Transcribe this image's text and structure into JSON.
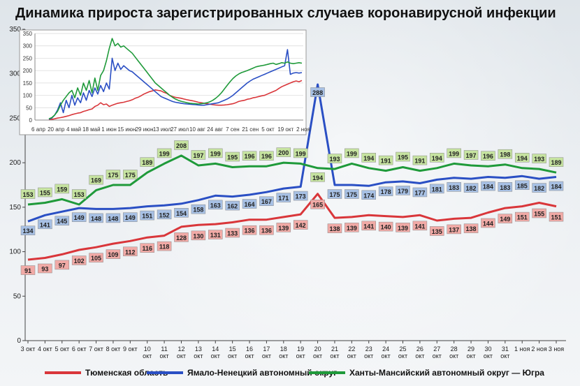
{
  "title": "Динамика прироста зарегистрированных случаев коронавирусной инфекции",
  "chart_data": [
    {
      "type": "line",
      "title": "",
      "ylim": [
        0,
        350
      ],
      "yticks": [
        0,
        50,
        100,
        150,
        200,
        250,
        300,
        350
      ],
      "grid": false,
      "legend_position": "bottom",
      "categories": [
        "3 окт",
        "4 окт",
        "5 окт",
        "6 окт",
        "7 окт",
        "8 окт",
        "9 окт",
        "10 окт",
        "11 окт",
        "12 окт",
        "13 окт",
        "14 окт",
        "15 окт",
        "16 окт",
        "17 окт",
        "18 окт",
        "19 окт",
        "20 окт",
        "21 окт",
        "22 окт",
        "23 окт",
        "24 окт",
        "25 окт",
        "26 окт",
        "27 окт",
        "28 окт",
        "29 окт",
        "30 окт",
        "31 окт",
        "1 ноя",
        "2 ноя",
        "3 ноя"
      ],
      "tick_labels": [
        {
          "l1": "3 окт",
          "l2": ""
        },
        {
          "l1": "4 окт",
          "l2": ""
        },
        {
          "l1": "5 окт",
          "l2": ""
        },
        {
          "l1": "6 окт",
          "l2": ""
        },
        {
          "l1": "7 окт",
          "l2": ""
        },
        {
          "l1": "8 окт",
          "l2": ""
        },
        {
          "l1": "9 окт",
          "l2": ""
        },
        {
          "l1": "10",
          "l2": "окт"
        },
        {
          "l1": "11",
          "l2": "окт"
        },
        {
          "l1": "12",
          "l2": "окт"
        },
        {
          "l1": "13",
          "l2": "окт"
        },
        {
          "l1": "14",
          "l2": "окт"
        },
        {
          "l1": "15",
          "l2": "окт"
        },
        {
          "l1": "16",
          "l2": "окт"
        },
        {
          "l1": "17",
          "l2": "окт"
        },
        {
          "l1": "18",
          "l2": "окт"
        },
        {
          "l1": "19",
          "l2": "окт"
        },
        {
          "l1": "20",
          "l2": "окт"
        },
        {
          "l1": "21",
          "l2": "окт"
        },
        {
          "l1": "22",
          "l2": "окт"
        },
        {
          "l1": "23",
          "l2": "окт"
        },
        {
          "l1": "24",
          "l2": "окт"
        },
        {
          "l1": "25",
          "l2": "окт"
        },
        {
          "l1": "26",
          "l2": "окт"
        },
        {
          "l1": "27",
          "l2": "окт"
        },
        {
          "l1": "28",
          "l2": "окт"
        },
        {
          "l1": "29",
          "l2": "окт"
        },
        {
          "l1": "30",
          "l2": "окт"
        },
        {
          "l1": "31",
          "l2": "окт"
        },
        {
          "l1": "1 ноя",
          "l2": ""
        },
        {
          "l1": "2 ноя",
          "l2": ""
        },
        {
          "l1": "3 ноя",
          "l2": ""
        }
      ],
      "series": [
        {
          "name": "Тюменская область",
          "color": "#d9363a",
          "label_bg": "#f1aaa6",
          "values": [
            91,
            93,
            97,
            102,
            105,
            109,
            112,
            116,
            118,
            128,
            130,
            131,
            133,
            136,
            136,
            139,
            142,
            165,
            138,
            139,
            141,
            140,
            139,
            141,
            135,
            137,
            138,
            144,
            149,
            151,
            155,
            151
          ]
        },
        {
          "name": "Ямало-Ненецкий автономный округ",
          "color": "#2a4fc4",
          "label_bg": "#a7c0e4",
          "values": [
            134,
            141,
            145,
            149,
            148,
            148,
            149,
            151,
            152,
            154,
            158,
            163,
            162,
            164,
            167,
            171,
            173,
            288,
            175,
            175,
            174,
            178,
            179,
            177,
            181,
            183,
            182,
            184,
            183,
            185,
            182,
            184
          ]
        },
        {
          "name": "Ханты-Мансийский автономный округ — Югра",
          "color": "#1f9a3a",
          "label_bg": "#c6e3a0",
          "values": [
            153,
            155,
            159,
            153,
            169,
            175,
            175,
            189,
            199,
            208,
            197,
            199,
            195,
            196,
            196,
            200,
            199,
            194,
            193,
            199,
            194,
            191,
            195,
            191,
            194,
            199,
            197,
            196,
            198,
            194,
            193,
            189
          ]
        }
      ]
    },
    {
      "type": "line",
      "title": "",
      "ylim": [
        0,
        350
      ],
      "yticks": [
        0,
        50,
        100,
        150,
        200,
        250,
        300,
        350
      ],
      "grid": true,
      "xtick_labels": [
        "6 апр",
        "20 апр",
        "4 май",
        "18 май",
        "1 июн",
        "15 июн",
        "29 июн",
        "13 июл",
        "27 июл",
        "10 авг",
        "24 авг",
        "7 сен",
        "21 сен",
        "5 окт",
        "19 окт",
        "2 ноя"
      ],
      "series": [
        {
          "name": "Тюменская область",
          "color": "#d9363a",
          "values": [
            2,
            3,
            5,
            8,
            10,
            12,
            15,
            18,
            22,
            25,
            28,
            30,
            35,
            38,
            42,
            45,
            55,
            60,
            70,
            62,
            65,
            55,
            60,
            64,
            68,
            70,
            72,
            75,
            78,
            82,
            88,
            92,
            98,
            105,
            110,
            115,
            118,
            122,
            120,
            118,
            112,
            108,
            100,
            95,
            92,
            90,
            88,
            85,
            82,
            80,
            78,
            75,
            72,
            70,
            68,
            66,
            64,
            62,
            61,
            60,
            60,
            61,
            62,
            64,
            66,
            70,
            75,
            78,
            80,
            84,
            86,
            90,
            92,
            95,
            98,
            100,
            105,
            110,
            115,
            120,
            128,
            135,
            140,
            145,
            150,
            155,
            158,
            155,
            160
          ]
        },
        {
          "name": "Ямало-Ненецкий автономный округ",
          "color": "#2a4fc4",
          "values": [
            3,
            8,
            20,
            40,
            70,
            30,
            80,
            50,
            100,
            60,
            90,
            70,
            110,
            80,
            120,
            95,
            130,
            105,
            140,
            115,
            150,
            125,
            250,
            200,
            230,
            205,
            220,
            210,
            200,
            195,
            185,
            175,
            165,
            155,
            145,
            135,
            125,
            115,
            105,
            95,
            90,
            85,
            80,
            75,
            72,
            70,
            68,
            66,
            65,
            64,
            63,
            62,
            61,
            60,
            60,
            62,
            64,
            66,
            68,
            70,
            75,
            80,
            85,
            92,
            100,
            110,
            120,
            130,
            140,
            150,
            158,
            165,
            170,
            175,
            180,
            185,
            190,
            195,
            200,
            205,
            210,
            215,
            220,
            285,
            185,
            190,
            192,
            190,
            192
          ]
        },
        {
          "name": "Ханты-Мансийский автономный округ — Югра",
          "color": "#1f9a3a",
          "values": [
            5,
            10,
            20,
            35,
            60,
            80,
            95,
            110,
            120,
            90,
            130,
            100,
            150,
            120,
            160,
            110,
            170,
            120,
            180,
            200,
            240,
            290,
            330,
            300,
            310,
            295,
            300,
            290,
            280,
            270,
            255,
            240,
            225,
            210,
            195,
            180,
            165,
            150,
            140,
            130,
            120,
            110,
            100,
            92,
            85,
            80,
            76,
            73,
            70,
            68,
            67,
            66,
            65,
            66,
            68,
            70,
            74,
            80,
            88,
            98,
            110,
            125,
            140,
            155,
            168,
            178,
            186,
            192,
            196,
            200,
            205,
            210,
            215,
            218,
            220,
            222,
            225,
            228,
            230,
            225,
            228,
            232,
            230,
            235,
            230,
            228,
            230,
            232,
            230
          ]
        }
      ]
    }
  ]
}
